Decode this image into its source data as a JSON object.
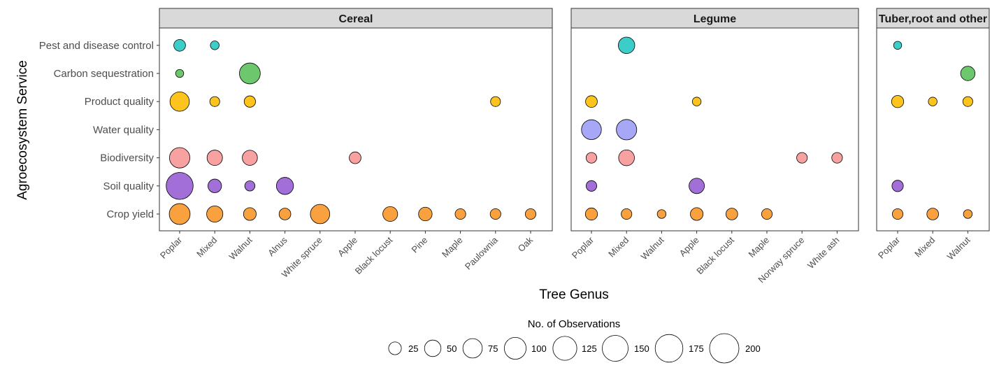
{
  "chart_data": {
    "type": "scatter",
    "subtype": "faceted-bubble",
    "xlabel": "Tree Genus",
    "ylabel": "Agroecosystem Service",
    "y_categories": [
      "Crop yield",
      "Soil quality",
      "Biodiversity",
      "Water quality",
      "Product quality",
      "Carbon sequestration",
      "Pest and disease control"
    ],
    "service_colors": {
      "Crop yield": "#F9A03F",
      "Soil quality": "#A26ED8",
      "Biodiversity": "#F7A1A1",
      "Water quality": "#A7A7F7",
      "Product quality": "#FEC41E",
      "Carbon sequestration": "#6DC86D",
      "Pest and disease control": "#3CCDC9"
    },
    "size_legend": {
      "title": "No. of Observations",
      "values": [
        25,
        50,
        75,
        100,
        125,
        150,
        175,
        200
      ]
    },
    "panels": [
      {
        "name": "Cereal",
        "categories": [
          "Poplar",
          "Mixed",
          "Walnut",
          "Alnus",
          "White spruce",
          "Apple",
          "Black locust",
          "Pine",
          "Maple",
          "Paulownia",
          "Oak"
        ],
        "points": [
          {
            "x": "Poplar",
            "y": "Pest and disease control",
            "n": 20
          },
          {
            "x": "Mixed",
            "y": "Pest and disease control",
            "n": 8
          },
          {
            "x": "Poplar",
            "y": "Carbon sequestration",
            "n": 6
          },
          {
            "x": "Walnut",
            "y": "Carbon sequestration",
            "n": 90
          },
          {
            "x": "Poplar",
            "y": "Product quality",
            "n": 75
          },
          {
            "x": "Mixed",
            "y": "Product quality",
            "n": 12
          },
          {
            "x": "Walnut",
            "y": "Product quality",
            "n": 18
          },
          {
            "x": "Paulownia",
            "y": "Product quality",
            "n": 12
          },
          {
            "x": "Poplar",
            "y": "Biodiversity",
            "n": 85
          },
          {
            "x": "Mixed",
            "y": "Biodiversity",
            "n": 42
          },
          {
            "x": "Walnut",
            "y": "Biodiversity",
            "n": 40
          },
          {
            "x": "Apple",
            "y": "Biodiversity",
            "n": 20
          },
          {
            "x": "Poplar",
            "y": "Soil quality",
            "n": 165
          },
          {
            "x": "Mixed",
            "y": "Soil quality",
            "n": 30
          },
          {
            "x": "Walnut",
            "y": "Soil quality",
            "n": 13
          },
          {
            "x": "Alnus",
            "y": "Soil quality",
            "n": 55
          },
          {
            "x": "Poplar",
            "y": "Crop yield",
            "n": 90
          },
          {
            "x": "Mixed",
            "y": "Crop yield",
            "n": 48
          },
          {
            "x": "Walnut",
            "y": "Crop yield",
            "n": 25
          },
          {
            "x": "Alnus",
            "y": "Crop yield",
            "n": 20
          },
          {
            "x": "White spruce",
            "y": "Crop yield",
            "n": 75
          },
          {
            "x": "Black locust",
            "y": "Crop yield",
            "n": 38
          },
          {
            "x": "Pine",
            "y": "Crop yield",
            "n": 30
          },
          {
            "x": "Maple",
            "y": "Crop yield",
            "n": 15
          },
          {
            "x": "Paulownia",
            "y": "Crop yield",
            "n": 15
          },
          {
            "x": "Oak",
            "y": "Crop yield",
            "n": 15
          }
        ]
      },
      {
        "name": "Legume",
        "categories": [
          "Poplar",
          "Mixed",
          "Walnut",
          "Apple",
          "Black locust",
          "Maple",
          "Norway spruce",
          "White ash"
        ],
        "points": [
          {
            "x": "Mixed",
            "y": "Pest and disease control",
            "n": 50
          },
          {
            "x": "Poplar",
            "y": "Product quality",
            "n": 20
          },
          {
            "x": "Apple",
            "y": "Product quality",
            "n": 8
          },
          {
            "x": "Poplar",
            "y": "Water quality",
            "n": 80
          },
          {
            "x": "Mixed",
            "y": "Water quality",
            "n": 85
          },
          {
            "x": "Poplar",
            "y": "Biodiversity",
            "n": 15
          },
          {
            "x": "Mixed",
            "y": "Biodiversity",
            "n": 45
          },
          {
            "x": "Norway spruce",
            "y": "Biodiversity",
            "n": 15
          },
          {
            "x": "White ash",
            "y": "Biodiversity",
            "n": 15
          },
          {
            "x": "Poplar",
            "y": "Soil quality",
            "n": 15
          },
          {
            "x": "Apple",
            "y": "Soil quality",
            "n": 42
          },
          {
            "x": "Poplar",
            "y": "Crop yield",
            "n": 22
          },
          {
            "x": "Mixed",
            "y": "Crop yield",
            "n": 15
          },
          {
            "x": "Walnut",
            "y": "Crop yield",
            "n": 8
          },
          {
            "x": "Apple",
            "y": "Crop yield",
            "n": 25
          },
          {
            "x": "Black locust",
            "y": "Crop yield",
            "n": 20
          },
          {
            "x": "Maple",
            "y": "Crop yield",
            "n": 15
          }
        ]
      },
      {
        "name": "Tuber,root and other",
        "categories": [
          "Poplar",
          "Mixed",
          "Walnut"
        ],
        "points": [
          {
            "x": "Poplar",
            "y": "Pest and disease control",
            "n": 6
          },
          {
            "x": "Walnut",
            "y": "Carbon sequestration",
            "n": 35
          },
          {
            "x": "Poplar",
            "y": "Product quality",
            "n": 22
          },
          {
            "x": "Mixed",
            "y": "Product quality",
            "n": 8
          },
          {
            "x": "Walnut",
            "y": "Product quality",
            "n": 12
          },
          {
            "x": "Poplar",
            "y": "Soil quality",
            "n": 18
          },
          {
            "x": "Poplar",
            "y": "Crop yield",
            "n": 15
          },
          {
            "x": "Mixed",
            "y": "Crop yield",
            "n": 20
          },
          {
            "x": "Walnut",
            "y": "Crop yield",
            "n": 8
          }
        ]
      }
    ]
  }
}
